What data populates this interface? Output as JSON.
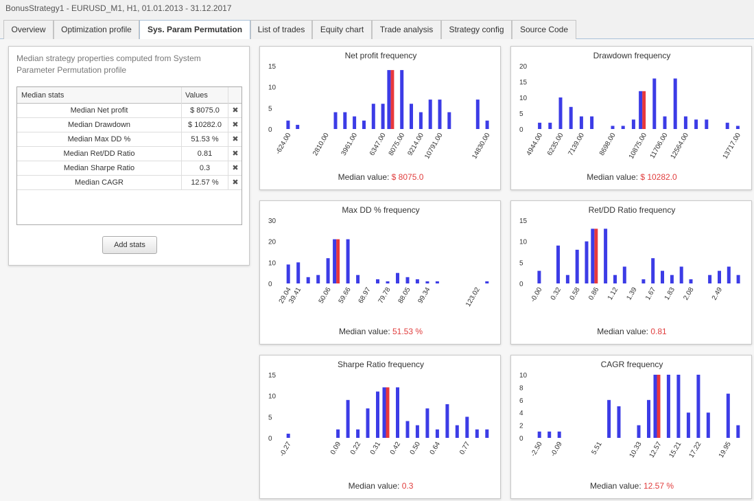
{
  "window": {
    "title": "BonusStrategy1 - EURUSD_M1, H1, 01.01.2013 - 31.12.2017"
  },
  "tabs": [
    {
      "label": "Overview",
      "active": false
    },
    {
      "label": "Optimization profile",
      "active": false
    },
    {
      "label": "Sys. Param Permutation",
      "active": true
    },
    {
      "label": "List of trades",
      "active": false
    },
    {
      "label": "Equity chart",
      "active": false
    },
    {
      "label": "Trade analysis",
      "active": false
    },
    {
      "label": "Strategy config",
      "active": false
    },
    {
      "label": "Source Code",
      "active": false
    }
  ],
  "left_panel": {
    "description": "Median strategy properties computed from System Parameter Permutation profile",
    "table": {
      "headers": [
        "Median stats",
        "Values"
      ],
      "remove_icon": "close-icon",
      "rows": [
        {
          "name": "Median Net profit",
          "value": "$ 8075.0"
        },
        {
          "name": "Median Drawdown",
          "value": "$ 10282.0"
        },
        {
          "name": "Median Max DD %",
          "value": "51.53 %"
        },
        {
          "name": "Median Ret/DD Ratio",
          "value": "0.81"
        },
        {
          "name": "Median Sharpe Ratio",
          "value": "0.3"
        },
        {
          "name": "Median CAGR",
          "value": "12.57 %"
        }
      ]
    },
    "add_button": "Add stats"
  },
  "colors": {
    "bar": "#3c3ce6",
    "median_bar": "#e8383c",
    "median_text": "#e03c3c"
  },
  "median_label": "Median value:",
  "chart_data": [
    {
      "type": "bar",
      "title": "Net profit frequency",
      "median_value": "$ 8075.0",
      "ylim": [
        0,
        15
      ],
      "yticks": [
        0,
        5,
        10,
        15
      ],
      "values": [
        2,
        1,
        0,
        0,
        0,
        4,
        4,
        3,
        2,
        6,
        6,
        14,
        14,
        6,
        4,
        7,
        7,
        4,
        0,
        0,
        7,
        2
      ],
      "median_index": 11,
      "xticks": [
        "-624.00",
        "2810.00",
        "3961.00",
        "6347.00",
        "8075.00",
        "9214.00",
        "10791.00",
        "14830.00"
      ],
      "xtick_at": [
        0,
        4,
        7,
        10,
        12,
        14,
        16,
        21
      ]
    },
    {
      "type": "bar",
      "title": "Drawdown frequency",
      "median_value": "$ 10282.0",
      "ylim": [
        0,
        20
      ],
      "yticks": [
        0,
        5,
        10,
        15,
        20
      ],
      "values": [
        2,
        2,
        10,
        7,
        4,
        4,
        0,
        1,
        1,
        3,
        12,
        16,
        4,
        16,
        4,
        3,
        3,
        0,
        2,
        1
      ],
      "median_index": 10,
      "xticks": [
        "4944.00",
        "6235.00",
        "7139.00",
        "8698.00",
        "10875.00",
        "11706.00",
        "12564.00",
        "13717.00"
      ],
      "xtick_at": [
        0,
        2,
        4,
        7,
        10,
        12,
        14,
        19
      ]
    },
    {
      "type": "bar",
      "title": "Max DD % frequency",
      "median_value": "51.53 %",
      "ylim": [
        0,
        30
      ],
      "yticks": [
        0,
        10,
        20,
        30
      ],
      "values": [
        9,
        10,
        3,
        4,
        12,
        21,
        21,
        4,
        0,
        2,
        1,
        5,
        3,
        2,
        1,
        1,
        0,
        0,
        0,
        0,
        1
      ],
      "median_index": 5,
      "xticks": [
        "29.04",
        "39.41",
        "50.06",
        "59.66",
        "68.97",
        "79.78",
        "88.05",
        "99.34",
        "123.02"
      ],
      "xtick_at": [
        0,
        1,
        4,
        6,
        8,
        10,
        12,
        14,
        19
      ]
    },
    {
      "type": "bar",
      "title": "Ret/DD Ratio frequency",
      "median_value": "0.81",
      "ylim": [
        0,
        15
      ],
      "yticks": [
        0,
        5,
        10,
        15
      ],
      "values": [
        3,
        0,
        9,
        2,
        8,
        10,
        13,
        13,
        2,
        4,
        0,
        1,
        6,
        3,
        2,
        4,
        1,
        0,
        2,
        3,
        4,
        2
      ],
      "median_index": 6,
      "xticks": [
        "-0.00",
        "0.32",
        "0.58",
        "0.86",
        "1.12",
        "1.39",
        "1.67",
        "1.83",
        "2.08",
        "2.49"
      ],
      "xtick_at": [
        0,
        2,
        4,
        6,
        8,
        10,
        12,
        14,
        16,
        19
      ]
    },
    {
      "type": "bar",
      "title": "Sharpe Ratio frequency",
      "median_value": "0.3",
      "ylim": [
        0,
        15
      ],
      "yticks": [
        0,
        5,
        10,
        15
      ],
      "values": [
        1,
        0,
        0,
        0,
        0,
        2,
        9,
        2,
        7,
        11,
        12,
        12,
        4,
        3,
        7,
        2,
        8,
        3,
        5,
        2,
        2
      ],
      "median_index": 10,
      "xticks": [
        "-0.27",
        "0.09",
        "0.22",
        "0.31",
        "0.42",
        "0.50",
        "0.64",
        "0.77"
      ],
      "xtick_at": [
        0,
        5,
        7,
        9,
        11,
        13,
        15,
        18
      ]
    },
    {
      "type": "bar",
      "title": "CAGR frequency",
      "median_value": "12.57 %",
      "ylim": [
        0,
        10
      ],
      "yticks": [
        0,
        2,
        4,
        6,
        8,
        10
      ],
      "values": [
        1,
        1,
        1,
        0,
        0,
        0,
        0,
        6,
        5,
        0,
        2,
        6,
        10,
        10,
        10,
        4,
        10,
        4,
        0,
        7,
        2
      ],
      "median_index": 12,
      "xticks": [
        "-2.50",
        "-0.09",
        "5.51",
        "10.33",
        "12.57",
        "15.21",
        "17.22",
        "19.95"
      ],
      "xtick_at": [
        0,
        2,
        6,
        10,
        12,
        14,
        16,
        19
      ]
    }
  ]
}
